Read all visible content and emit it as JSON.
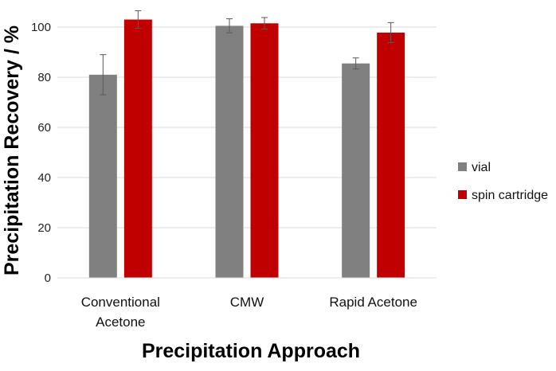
{
  "chart_data": {
    "type": "bar",
    "title": "",
    "xlabel": "Precipitation Approach",
    "ylabel": "Precipitation Recovery / %",
    "ylim": [
      0,
      105
    ],
    "yticks": [
      0,
      20,
      40,
      60,
      80,
      100
    ],
    "grid": true,
    "legend_position": "right",
    "categories": [
      [
        "Conventional",
        "Acetone"
      ],
      [
        "CMW"
      ],
      [
        "Rapid Acetone"
      ]
    ],
    "series": [
      {
        "name": "vial",
        "color": "#808080",
        "values": [
          81,
          100.5,
          85.5
        ],
        "errors": [
          8,
          2.8,
          2.2
        ]
      },
      {
        "name": "spin cartridge",
        "color": "#C00000",
        "values": [
          103,
          101.5,
          97.8
        ],
        "errors": [
          3.5,
          2.3,
          4
        ]
      }
    ]
  }
}
